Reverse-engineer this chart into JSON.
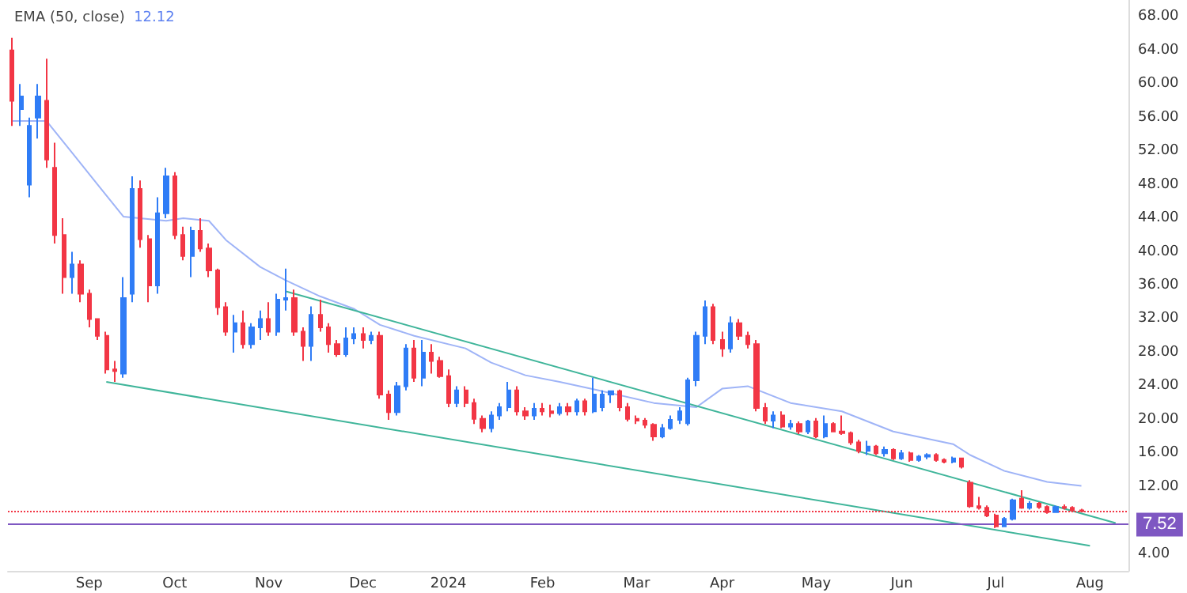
{
  "chart_data": {
    "type": "candlestick",
    "title": "EMA (50, close)",
    "subtitle": "12.12",
    "categories": [
      null,
      null,
      null,
      null,
      null,
      null,
      null,
      null,
      null,
      "Sep",
      null,
      null,
      null,
      null,
      null,
      null,
      null,
      null,
      null,
      "Oct",
      null,
      null,
      null,
      null,
      null,
      null,
      null,
      null,
      null,
      null,
      "Nov",
      null,
      null,
      null,
      null,
      null,
      null,
      null,
      null,
      null,
      null,
      "Dec",
      null,
      null,
      null,
      null,
      null,
      null,
      null,
      null,
      null,
      "2024",
      null,
      null,
      null,
      null,
      null,
      null,
      null,
      null,
      null,
      null,
      "Feb",
      null,
      null,
      null,
      null,
      null,
      null,
      null,
      null,
      null,
      null,
      "Mar",
      null,
      null,
      null,
      null,
      null,
      null,
      null,
      null,
      null,
      "Apr",
      null,
      null,
      null,
      null,
      null,
      null,
      null,
      null,
      null,
      null,
      "May",
      null,
      null,
      null,
      null,
      null,
      null,
      null,
      null,
      null,
      "Jun",
      null,
      null,
      null,
      null,
      null,
      null,
      null,
      null,
      null,
      null,
      "Jul",
      null,
      null,
      null,
      null,
      null,
      null,
      null,
      null,
      null,
      null,
      "Aug",
      null,
      null,
      null,
      null
    ],
    "ohlc": [
      [
        64,
        65.5,
        55,
        58
      ],
      [
        57,
        60,
        55,
        58.5
      ],
      [
        48,
        56,
        46.5,
        55
      ],
      [
        56,
        60,
        53.5,
        58.5
      ],
      [
        58,
        63,
        50,
        51
      ],
      [
        50,
        53,
        41,
        42
      ],
      [
        42,
        44,
        35,
        37
      ],
      [
        37,
        40,
        35,
        38.5
      ],
      [
        38.5,
        39,
        34,
        35
      ],
      [
        35,
        35.5,
        31,
        32
      ],
      [
        32,
        32,
        29.5,
        30
      ],
      [
        30,
        30.5,
        25.5,
        26
      ],
      [
        26,
        27,
        24.5,
        25.8
      ],
      [
        25.5,
        37,
        25,
        34.5
      ],
      [
        35,
        49,
        34,
        47.5
      ],
      [
        47.5,
        48.5,
        40.5,
        41.5
      ],
      [
        41.5,
        42,
        34,
        36
      ],
      [
        36,
        46.5,
        35,
        44.6
      ],
      [
        44.6,
        50,
        44,
        49
      ],
      [
        49,
        49.5,
        41.5,
        42
      ],
      [
        42,
        43,
        39,
        39.5
      ],
      [
        39.5,
        43,
        37,
        42.5
      ],
      [
        42.5,
        44,
        40,
        40.4
      ],
      [
        40.4,
        41,
        37,
        37.8
      ],
      [
        37.8,
        38,
        32.5,
        33.4
      ],
      [
        33.4,
        34,
        30,
        30.5
      ],
      [
        30.5,
        32.5,
        28,
        31.5
      ],
      [
        31.5,
        33,
        28.5,
        29
      ],
      [
        29,
        31.5,
        28.5,
        31
      ],
      [
        31,
        33,
        29.5,
        32
      ],
      [
        32,
        34,
        30,
        30.5
      ],
      [
        30.5,
        35,
        30,
        34.3
      ],
      [
        34.3,
        38,
        33,
        34.5
      ],
      [
        34.5,
        35.5,
        30,
        30.5
      ],
      [
        30.5,
        31,
        27,
        28.8
      ],
      [
        28.8,
        33.5,
        27,
        32.5
      ],
      [
        32.5,
        34.3,
        30.5,
        31
      ],
      [
        31,
        31.5,
        28,
        29
      ],
      [
        29,
        29.5,
        27.5,
        27.8
      ],
      [
        27.8,
        31,
        27.5,
        29.7
      ],
      [
        29.7,
        31,
        29,
        30.2
      ],
      [
        30.2,
        31,
        28.5,
        29.5
      ],
      [
        29.5,
        30.5,
        29,
        30
      ],
      [
        30,
        30.5,
        22.5,
        23
      ],
      [
        23,
        23.5,
        20,
        20.9
      ],
      [
        20.9,
        24.5,
        20.5,
        24
      ],
      [
        24,
        29,
        23.5,
        28.5
      ],
      [
        28.5,
        29.5,
        24.5,
        25
      ],
      [
        25,
        29.5,
        24,
        28
      ],
      [
        28,
        29,
        25.5,
        27
      ],
      [
        27,
        27.5,
        25,
        25.2
      ],
      [
        25.2,
        26,
        21.5,
        22
      ],
      [
        22,
        24,
        21.5,
        23.5
      ],
      [
        23.5,
        24,
        21.5,
        22
      ],
      [
        22,
        22.5,
        19.5,
        20.1
      ],
      [
        20.1,
        20.5,
        18.5,
        19
      ],
      [
        19,
        21,
        18.5,
        20.5
      ],
      [
        20.5,
        22,
        20,
        21.5
      ],
      [
        21.5,
        24.5,
        21,
        23.5
      ],
      [
        23.5,
        24,
        20.5,
        21
      ],
      [
        21,
        21.5,
        20,
        20.5
      ],
      [
        20.5,
        22,
        20,
        21.3
      ],
      [
        21.3,
        22,
        20.5,
        21
      ],
      [
        21,
        21.8,
        20.3,
        20.8
      ],
      [
        20.8,
        22,
        20.5,
        21.5
      ],
      [
        21.5,
        22,
        20.5,
        21
      ],
      [
        21,
        22.5,
        20.5,
        22.2
      ],
      [
        22.2,
        22.5,
        20.5,
        21
      ],
      [
        21,
        25,
        20.8,
        23
      ],
      [
        21.5,
        23.5,
        21,
        23
      ],
      [
        23,
        23.5,
        22,
        23.4
      ],
      [
        23.4,
        23.6,
        21,
        21.5
      ],
      [
        21.5,
        22,
        19.8,
        20.1
      ],
      [
        20.1,
        20.5,
        19.5,
        19.9
      ],
      [
        19.9,
        20.2,
        19,
        19.4
      ],
      [
        19.4,
        19.6,
        17.5,
        18
      ],
      [
        18,
        19.5,
        17.8,
        19
      ],
      [
        19,
        20.5,
        18.8,
        20
      ],
      [
        20,
        21.5,
        19.5,
        21
      ],
      [
        19.6,
        25,
        19.3,
        24.7
      ],
      [
        24.7,
        30.5,
        24,
        30
      ],
      [
        30,
        34.2,
        29,
        33.4
      ],
      [
        33.4,
        33.8,
        29,
        29.5
      ],
      [
        29.5,
        30.5,
        27.5,
        28.5
      ],
      [
        28.5,
        32.3,
        28,
        31.5
      ],
      [
        31.5,
        32,
        29.5,
        30
      ],
      [
        30,
        30.5,
        28.5,
        29
      ],
      [
        29,
        29.5,
        21,
        21.4
      ],
      [
        21.4,
        22,
        19.5,
        19.9
      ],
      [
        19.9,
        21,
        19,
        20.5
      ],
      [
        20.5,
        21,
        19,
        19.2
      ],
      [
        19.2,
        20,
        18.8,
        19.5
      ],
      [
        19.5,
        19.8,
        18.3,
        18.6
      ],
      [
        18.6,
        20,
        18.3,
        19.8
      ],
      [
        19.8,
        20.2,
        17.8,
        18
      ],
      [
        18,
        20.5,
        17.8,
        19.5
      ],
      [
        19.5,
        19.7,
        18.5,
        18.6
      ],
      [
        18.6,
        20.5,
        18.2,
        18.4
      ],
      [
        18.4,
        18.6,
        17,
        17.3
      ],
      [
        17.3,
        17.6,
        16,
        16.3
      ],
      [
        16.3,
        17.5,
        15.8,
        16.8
      ],
      [
        16.8,
        17,
        15.8,
        16
      ],
      [
        16,
        16.8,
        15.6,
        16.4
      ],
      [
        16.4,
        16.6,
        15.2,
        15.4
      ],
      [
        15.4,
        16.4,
        15.2,
        16
      ],
      [
        16,
        16.2,
        15,
        15.2
      ],
      [
        15.2,
        15.8,
        15,
        15.6
      ],
      [
        15.6,
        16,
        15.3,
        15.8
      ],
      [
        15.8,
        16,
        15,
        15.2
      ],
      [
        15.2,
        15.4,
        14.8,
        15
      ],
      [
        15,
        15.6,
        14.8,
        15.4
      ],
      [
        15.4,
        15.5,
        14.2,
        14.4
      ],
      [
        12.5,
        12.8,
        9.5,
        9.7
      ],
      [
        9.7,
        10.8,
        9.3,
        9.5
      ],
      [
        9.5,
        9.8,
        8.4,
        8.6
      ],
      [
        8.6,
        8.8,
        7.1,
        7.3
      ],
      [
        7.3,
        8.4,
        7.2,
        8.2
      ],
      [
        8.2,
        10.6,
        8,
        10.4
      ],
      [
        10.6,
        11.6,
        9.4,
        9.5
      ],
      [
        9.5,
        10.3,
        9.3,
        10
      ],
      [
        10,
        10.2,
        9.4,
        9.6
      ],
      [
        9.6,
        9.8,
        8.8,
        9
      ],
      [
        9,
        9.8,
        8.9,
        9.6
      ],
      [
        9.6,
        9.9,
        9.3,
        9.5
      ],
      [
        9.5,
        9.7,
        9.1,
        9.2
      ],
      [
        9.2,
        9.4,
        9,
        9.1
      ],
      null,
      null,
      null,
      null,
      null
    ],
    "colors": [
      "#f23645",
      "#2f7cf6",
      "#2f7cf6",
      "#2f7cf6",
      "#f23645",
      "#f23645",
      "#f23645",
      "#2f7cf6",
      "#f23645",
      "#f23645",
      "#f23645",
      "#f23645",
      "#f23645",
      "#2f7cf6",
      "#2f7cf6",
      "#f23645",
      "#f23645",
      "#2f7cf6",
      "#2f7cf6",
      "#f23645",
      "#f23645",
      "#2f7cf6",
      "#f23645",
      "#f23645",
      "#f23645",
      "#f23645",
      "#2f7cf6",
      "#f23645",
      "#2f7cf6",
      "#2f7cf6",
      "#f23645",
      "#2f7cf6",
      "#2f7cf6",
      "#f23645",
      "#f23645",
      "#2f7cf6",
      "#f23645",
      "#f23645",
      "#f23645",
      "#2f7cf6",
      "#2f7cf6",
      "#f23645",
      "#2f7cf6",
      "#f23645",
      "#f23645",
      "#2f7cf6",
      "#2f7cf6",
      "#f23645",
      "#2f7cf6",
      "#f23645",
      "#f23645",
      "#f23645",
      "#2f7cf6",
      "#f23645",
      "#f23645",
      "#f23645",
      "#2f7cf6",
      "#2f7cf6",
      "#2f7cf6",
      "#f23645",
      "#f23645",
      "#2f7cf6",
      "#f23645",
      "#f23645",
      "#2f7cf6",
      "#f23645",
      "#2f7cf6",
      "#f23645",
      "#2f7cf6",
      "#2f7cf6",
      "#2f7cf6",
      "#f23645",
      "#f23645",
      "#f23645",
      "#f23645",
      "#f23645",
      "#2f7cf6",
      "#2f7cf6",
      "#2f7cf6",
      "#2f7cf6",
      "#2f7cf6",
      "#2f7cf6",
      "#f23645",
      "#f23645",
      "#2f7cf6",
      "#f23645",
      "#f23645",
      "#f23645",
      "#f23645",
      "#2f7cf6",
      "#f23645",
      "#2f7cf6",
      "#f23645",
      "#2f7cf6",
      "#f23645",
      "#2f7cf6",
      "#f23645",
      "#f23645",
      "#f23645",
      "#f23645",
      "#2f7cf6",
      "#f23645",
      "#2f7cf6",
      "#f23645",
      "#2f7cf6",
      "#f23645",
      "#2f7cf6",
      "#2f7cf6",
      "#f23645",
      "#f23645",
      "#2f7cf6",
      "#f23645",
      "#f23645",
      "#f23645",
      "#f23645",
      "#f23645",
      "#2f7cf6",
      "#2f7cf6",
      "#f23645",
      "#2f7cf6",
      "#f23645",
      "#f23645",
      "#2f7cf6",
      "#f23645",
      "#f23645",
      "#f23645",
      null,
      null,
      null,
      null,
      null
    ],
    "series": [
      {
        "type": "line",
        "color": "#9fb4f7",
        "values": [
          55.6,
          null,
          null,
          null,
          55.6,
          null,
          null,
          51.8,
          null,
          null,
          48,
          null,
          null,
          44.2,
          null,
          null,
          null,
          null,
          43.7,
          null,
          44,
          null,
          null,
          43.7,
          null,
          41.4,
          null,
          null,
          null,
          38.2,
          null,
          null,
          36.6,
          null,
          null,
          null,
          34.7,
          null,
          null,
          null,
          33.2,
          null,
          null,
          31.3,
          null,
          null,
          null,
          30,
          null,
          null,
          null,
          null,
          null,
          28.5,
          null,
          null,
          26.8,
          null,
          null,
          null,
          25.3,
          null,
          null,
          null,
          24.5,
          null,
          null,
          null,
          null,
          23.4,
          null,
          null,
          null,
          null,
          null,
          22,
          null,
          null,
          null,
          null,
          21.5,
          null,
          null,
          23.7,
          null,
          null,
          24,
          null,
          null,
          null,
          null,
          22,
          null,
          null,
          null,
          null,
          null,
          21,
          null,
          null,
          null,
          null,
          null,
          18.6,
          null,
          null,
          null,
          null,
          null,
          null,
          17.1,
          null,
          15.8,
          null,
          null,
          null,
          13.9,
          null,
          null,
          null,
          null,
          12.6,
          null,
          null,
          null,
          12.12,
          null,
          null,
          null,
          null,
          null
        ]
      },
      {
        "type": "line",
        "color": "#3fb59a",
        "values": [
          null,
          null,
          null,
          null,
          null,
          null,
          null,
          null,
          null,
          null,
          null,
          null,
          null,
          null,
          null,
          null,
          null,
          null,
          null,
          null,
          null,
          null,
          null,
          null,
          null,
          null,
          null,
          null,
          null,
          null,
          null,
          null,
          35.3,
          null,
          null,
          null,
          null,
          null,
          null,
          null,
          null,
          null,
          null,
          null,
          null,
          null,
          null,
          null,
          null,
          null,
          null,
          null,
          null,
          null,
          null,
          null,
          null,
          null,
          null,
          null,
          null,
          null,
          null,
          null,
          null,
          null,
          null,
          null,
          null,
          null,
          null,
          null,
          null,
          null,
          null,
          null,
          null,
          null,
          null,
          null,
          null,
          null,
          null,
          null,
          null,
          null,
          null,
          null,
          null,
          null,
          null,
          null,
          null,
          null,
          null,
          null,
          null,
          null,
          null,
          null,
          null,
          null,
          null,
          null,
          null,
          null,
          null,
          null,
          null,
          null,
          null,
          null,
          null,
          null,
          null,
          null,
          null,
          null,
          null,
          null,
          null,
          null,
          null,
          null,
          null,
          null,
          null,
          null,
          null,
          7.7,
          null
        ]
      },
      {
        "type": "line",
        "color": "#3fb59a",
        "values": [
          null,
          null,
          null,
          null,
          null,
          null,
          null,
          null,
          null,
          null,
          null,
          24.5,
          null,
          null,
          null,
          null,
          null,
          null,
          null,
          null,
          null,
          null,
          null,
          null,
          null,
          null,
          null,
          null,
          null,
          null,
          null,
          null,
          null,
          null,
          null,
          null,
          null,
          null,
          null,
          null,
          null,
          null,
          null,
          null,
          null,
          null,
          null,
          null,
          null,
          null,
          null,
          null,
          null,
          null,
          null,
          null,
          null,
          null,
          null,
          null,
          null,
          null,
          null,
          null,
          null,
          null,
          null,
          null,
          null,
          null,
          null,
          null,
          null,
          null,
          null,
          null,
          null,
          null,
          null,
          null,
          null,
          null,
          null,
          null,
          null,
          null,
          null,
          null,
          null,
          null,
          null,
          null,
          null,
          null,
          null,
          null,
          null,
          null,
          null,
          null,
          null,
          null,
          null,
          null,
          null,
          null,
          null,
          null,
          null,
          null,
          null,
          null,
          null,
          null,
          null,
          null,
          null,
          null,
          null,
          null,
          null,
          null,
          null,
          null,
          null,
          null,
          5,
          null,
          null,
          null,
          null
        ]
      }
    ],
    "ylim": [
      2,
      70
    ],
    "yticks": [
      {
        "value": 4,
        "label": "4.00"
      },
      {
        "value": 12,
        "label": "12.00"
      },
      {
        "value": 16,
        "label": "16.00"
      },
      {
        "value": 20,
        "label": "20.00"
      },
      {
        "value": 24,
        "label": "24.00"
      },
      {
        "value": 28,
        "label": "28.00"
      },
      {
        "value": 32,
        "label": "32.00"
      },
      {
        "value": 36,
        "label": "36.00"
      },
      {
        "value": 40,
        "label": "40.00"
      },
      {
        "value": 44,
        "label": "44.00"
      },
      {
        "value": 48,
        "label": "48.00"
      },
      {
        "value": 52,
        "label": "52.00"
      },
      {
        "value": 56,
        "label": "56.00"
      },
      {
        "value": 60,
        "label": "60.00"
      },
      {
        "value": 64,
        "label": "64.00"
      },
      {
        "value": 68,
        "label": "68.00"
      }
    ],
    "ref_lines": [
      {
        "axis": "y",
        "value": 7.52,
        "label": "7.52",
        "color": "#7e57c2",
        "line_style": "solid"
      },
      {
        "axis": "y",
        "value": 9.1,
        "color": "#f23645",
        "line_style": "dotted"
      }
    ],
    "grid": false
  }
}
